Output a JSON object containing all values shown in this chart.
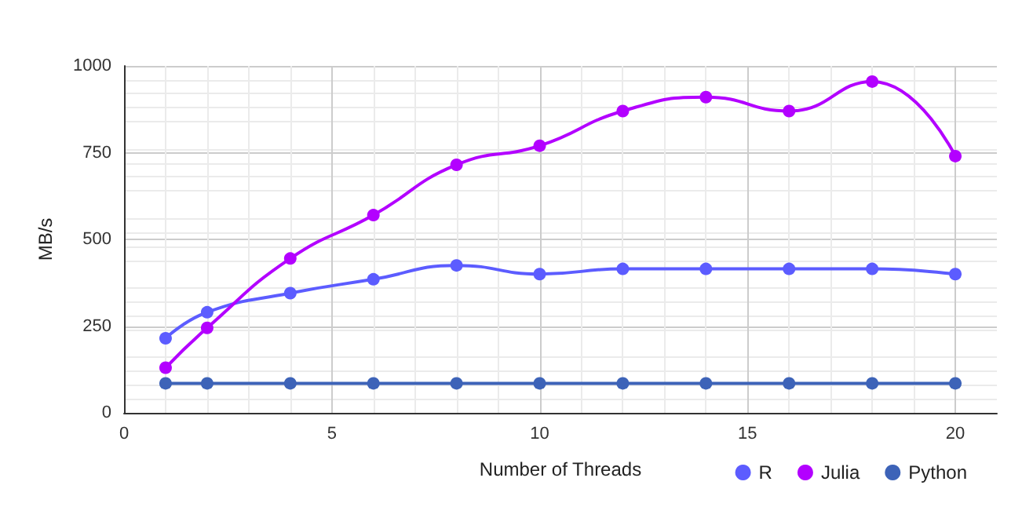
{
  "chart_data": {
    "type": "line",
    "xlabel": "Number of Threads",
    "ylabel": "MB/s",
    "x": [
      1,
      2,
      4,
      6,
      8,
      10,
      12,
      14,
      16,
      18,
      20
    ],
    "series": [
      {
        "name": "R",
        "color": "#5c5cff",
        "values": [
          215,
          290,
          345,
          385,
          425,
          400,
          415,
          415,
          415,
          415,
          400
        ]
      },
      {
        "name": "Julia",
        "color": "#b300ff",
        "values": [
          130,
          245,
          445,
          570,
          715,
          770,
          870,
          910,
          870,
          955,
          740
        ]
      },
      {
        "name": "Python",
        "color": "#3d63b8",
        "values": [
          85,
          85,
          85,
          85,
          85,
          85,
          85,
          85,
          85,
          85,
          85
        ]
      }
    ],
    "xlim": [
      0,
      21
    ],
    "xticks": [
      0,
      5,
      10,
      15,
      20
    ],
    "ylim": [
      0,
      1000
    ],
    "yticks": [
      0,
      250,
      500,
      750,
      1000
    ],
    "grid": true,
    "legend": "bottom right",
    "marker": "circle",
    "line_style": "solid"
  }
}
